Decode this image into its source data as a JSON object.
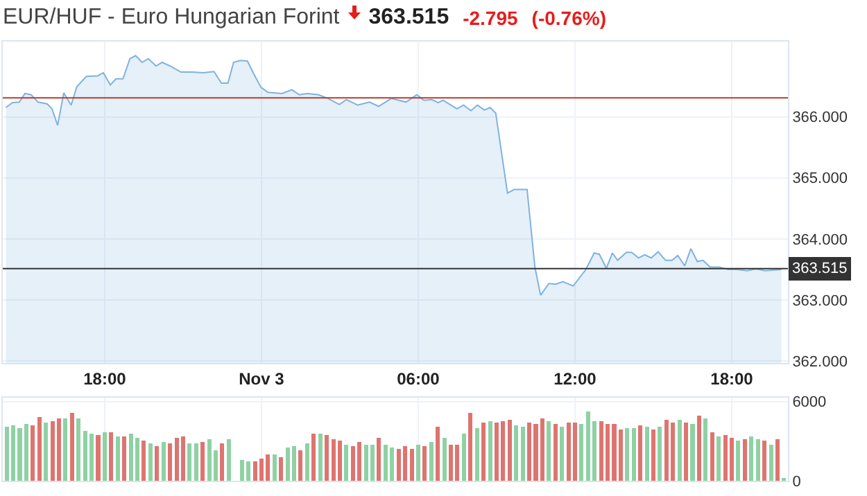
{
  "chart_data": [
    {
      "type": "area",
      "title": "EUR/HUF - Euro Hungarian Forint",
      "annotations": [
        "363.515",
        "-2.795",
        "(-0.76%)"
      ],
      "x": [
        "--11-02T14:13",
        "--11-02T14:28",
        "--11-02T14:44",
        "--11-02T14:57",
        "--11-02T15:11",
        "--11-02T15:27",
        "--11-02T15:48",
        "--11-02T15:59",
        "--11-02T16:12",
        "--11-02T16:26",
        "--11-02T16:43",
        "--11-02T16:56",
        "--11-02T17:18",
        "--11-02T17:44",
        "--11-02T17:57",
        "--11-02T18:13",
        "--11-02T18:26",
        "--11-02T18:42",
        "--11-02T18:58",
        "--11-02T19:11",
        "--11-02T19:26",
        "--11-02T19:40",
        "--11-02T19:58",
        "--11-02T20:12",
        "--11-02T20:33",
        "--11-02T20:55",
        "--11-02T21:21",
        "--11-02T21:47",
        "--11-02T22:11",
        "--11-02T22:28",
        "--11-02T22:43",
        "--11-02T22:56",
        "--11-02T23:12",
        "--11-02T23:28",
        "--11-02T23:41",
        "--11-02T23:59",
        "--11-03T00:15",
        "--11-03T00:47",
        "--11-03T01:10",
        "--11-03T01:27",
        "--11-03T01:45",
        "--11-03T02:11",
        "--11-03T02:33",
        "--11-03T02:59",
        "--11-03T03:15",
        "--11-03T03:41",
        "--11-03T04:08",
        "--11-03T04:29",
        "--11-03T04:58",
        "--11-03T05:32",
        "--11-03T05:57",
        "--11-03T06:13",
        "--11-03T06:31",
        "--11-03T06:46",
        "--11-03T06:57",
        "--11-03T07:29",
        "--11-03T07:44",
        "--11-03T08:01",
        "--11-03T08:16",
        "--11-03T08:32",
        "--11-03T08:45",
        "--11-03T08:58",
        "--11-03T09:25",
        "--11-03T09:41",
        "--11-03T10:10",
        "--11-03T10:28",
        "--11-03T10:41",
        "--11-03T11:00",
        "--11-03T11:16",
        "--11-03T11:32",
        "--11-03T11:56",
        "--11-03T12:25",
        "--11-03T12:44",
        "--11-03T12:56",
        "--11-03T13:12",
        "--11-03T13:26",
        "--11-03T13:38",
        "--11-03T13:58",
        "--11-03T14:10",
        "--11-03T14:26",
        "--11-03T14:40",
        "--11-03T14:55",
        "--11-03T15:11",
        "--11-03T15:28",
        "--11-03T15:43",
        "--11-03T15:56",
        "--11-03T16:12",
        "--11-03T16:26",
        "--11-03T16:41",
        "--11-03T16:54",
        "--11-03T17:10",
        "--11-03T17:31",
        "--11-03T17:52",
        "--11-03T18:13",
        "--11-03T18:35",
        "--11-03T18:56",
        "--11-03T19:17",
        "--11-03T19:54"
      ],
      "series": [
        {
          "color": "#7fb2e0",
          "values": [
            366.15,
            366.23,
            366.24,
            366.38,
            366.36,
            366.24,
            366.21,
            366.13,
            365.86,
            366.39,
            366.19,
            366.49,
            366.66,
            366.67,
            366.72,
            366.52,
            366.62,
            366.62,
            366.95,
            367.0,
            366.89,
            366.95,
            366.83,
            366.89,
            366.82,
            366.73,
            366.73,
            366.72,
            366.74,
            366.55,
            366.55,
            366.89,
            366.92,
            366.91,
            366.72,
            366.48,
            366.4,
            366.38,
            366.44,
            366.36,
            366.38,
            366.36,
            366.3,
            366.2,
            366.28,
            366.19,
            366.24,
            366.17,
            366.3,
            366.24,
            366.36,
            366.27,
            366.28,
            366.23,
            366.27,
            366.13,
            366.19,
            366.1,
            366.19,
            366.11,
            366.15,
            366.06,
            364.75,
            364.81,
            364.81,
            363.54,
            363.08,
            363.27,
            363.26,
            363.3,
            363.23,
            363.5,
            363.77,
            363.75,
            363.52,
            363.77,
            363.65,
            363.78,
            363.78,
            363.69,
            363.74,
            363.69,
            363.79,
            363.65,
            363.65,
            363.73,
            363.56,
            363.84,
            363.63,
            363.65,
            363.54,
            363.54,
            363.5,
            363.5,
            363.48,
            363.51,
            363.48,
            363.5
          ]
        }
      ],
      "xlim": [
        "--11-02T14:06",
        "--11-03T20:09"
      ],
      "ylim": [
        361.97,
        367.23
      ],
      "xticks": [
        {
          "value": "--11-02T18:00",
          "label": "18:00"
        },
        {
          "value": "--11-03",
          "label": "Nov 3"
        },
        {
          "value": "--11-03T06:00",
          "label": "06:00"
        },
        {
          "value": "--11-03T12:00",
          "label": "12:00"
        },
        {
          "value": "--11-03T18:00",
          "label": "18:00"
        }
      ],
      "yticks": [
        {
          "value": 362,
          "label": "362.000"
        },
        {
          "value": 363,
          "label": "363.000"
        },
        {
          "value": 364,
          "label": "364.000"
        },
        {
          "value": 365,
          "label": "365.000"
        },
        {
          "value": 366,
          "label": "366.000"
        }
      ],
      "grid": true,
      "ref_lines": [
        {
          "axis": "y",
          "value": 366.31,
          "color": "#c0392b"
        },
        {
          "axis": "y",
          "value": 363.515,
          "label": "363.515",
          "color": "#333333"
        }
      ]
    },
    {
      "type": "bar",
      "x": [
        "--11-02T14:15",
        "--11-02T14:30",
        "--11-02T14:45",
        "--11-02T15:00",
        "--11-02T15:15",
        "--11-02T15:30",
        "--11-02T15:45",
        "--11-02T16:00",
        "--11-02T16:15",
        "--11-02T16:30",
        "--11-02T16:45",
        "--11-02T17:00",
        "--11-02T17:15",
        "--11-02T17:30",
        "--11-02T17:45",
        "--11-02T18:00",
        "--11-02T18:15",
        "--11-02T18:30",
        "--11-02T18:45",
        "--11-02T19:00",
        "--11-02T19:15",
        "--11-02T19:30",
        "--11-02T19:45",
        "--11-02T20:00",
        "--11-02T20:15",
        "--11-02T20:30",
        "--11-02T20:45",
        "--11-02T21:00",
        "--11-02T21:15",
        "--11-02T21:30",
        "--11-02T21:45",
        "--11-02T22:00",
        "--11-02T22:15",
        "--11-02T22:30",
        "--11-02T22:45",
        "--11-02T23:00",
        "--11-02T23:15",
        "--11-02T23:30",
        "--11-02T23:45",
        "--11-03T00:00",
        "--11-03T00:15",
        "--11-03T00:30",
        "--11-03T00:45",
        "--11-03T01:00",
        "--11-03T01:15",
        "--11-03T01:30",
        "--11-03T01:45",
        "--11-03T02:00",
        "--11-03T02:15",
        "--11-03T02:30",
        "--11-03T02:45",
        "--11-03T03:00",
        "--11-03T03:15",
        "--11-03T03:30",
        "--11-03T03:45",
        "--11-03T04:00",
        "--11-03T04:15",
        "--11-03T04:30",
        "--11-03T04:45",
        "--11-03T05:00",
        "--11-03T05:15",
        "--11-03T05:30",
        "--11-03T05:45",
        "--11-03T06:00",
        "--11-03T06:15",
        "--11-03T06:30",
        "--11-03T06:45",
        "--11-03T07:00",
        "--11-03T07:15",
        "--11-03T07:30",
        "--11-03T07:45",
        "--11-03T08:00",
        "--11-03T08:15",
        "--11-03T08:30",
        "--11-03T08:45",
        "--11-03T09:00",
        "--11-03T09:15",
        "--11-03T09:30",
        "--11-03T09:45",
        "--11-03T10:00",
        "--11-03T10:15",
        "--11-03T10:30",
        "--11-03T10:45",
        "--11-03T11:00",
        "--11-03T11:15",
        "--11-03T11:30",
        "--11-03T11:45",
        "--11-03T12:00",
        "--11-03T12:15",
        "--11-03T12:30",
        "--11-03T12:45",
        "--11-03T13:00",
        "--11-03T13:15",
        "--11-03T13:30",
        "--11-03T13:45",
        "--11-03T14:00",
        "--11-03T14:15",
        "--11-03T14:30",
        "--11-03T14:45",
        "--11-03T15:00",
        "--11-03T15:15",
        "--11-03T15:30",
        "--11-03T15:45",
        "--11-03T16:00",
        "--11-03T16:15",
        "--11-03T16:30",
        "--11-03T16:45",
        "--11-03T17:00",
        "--11-03T17:15",
        "--11-03T17:30",
        "--11-03T17:45",
        "--11-03T18:00",
        "--11-03T18:15",
        "--11-03T18:30",
        "--11-03T18:45",
        "--11-03T19:00",
        "--11-03T19:15",
        "--11-03T19:30",
        "--11-03T19:45",
        "--11-03T20:00"
      ],
      "values": [
        4080,
        4190,
        3980,
        4330,
        4190,
        4850,
        4430,
        4540,
        4750,
        4750,
        5170,
        4750,
        3800,
        3590,
        3490,
        3700,
        3700,
        3380,
        3380,
        3590,
        3280,
        3070,
        2860,
        2650,
        2960,
        2860,
        3280,
        3380,
        2860,
        2860,
        2960,
        3170,
        2330,
        2860,
        3170,
        null,
        1600,
        1490,
        1490,
        1700,
        2020,
        2020,
        1810,
        2540,
        2650,
        2330,
        2860,
        3590,
        3590,
        3490,
        3170,
        3070,
        2750,
        2650,
        2960,
        2750,
        2750,
        3280,
        2750,
        2540,
        2440,
        2650,
        2440,
        2750,
        2650,
        2960,
        4110,
        3280,
        2750,
        2750,
        3590,
        5170,
        4010,
        4430,
        4540,
        4430,
        4540,
        4640,
        4220,
        4110,
        4430,
        4330,
        4750,
        4500,
        4330,
        4110,
        4430,
        4430,
        4330,
        5270,
        4540,
        4540,
        4330,
        4330,
        3910,
        4010,
        4010,
        4220,
        4110,
        3910,
        4110,
        4640,
        4430,
        4640,
        4430,
        4330,
        4950,
        4750,
        3700,
        3380,
        3490,
        3280,
        3070,
        3170,
        3380,
        3170,
        3070,
        2750,
        3170,
        230
      ],
      "colors": [
        "#8fd1a4",
        "#8fd1a4",
        "#8fd1a4",
        "#8fd1a4",
        "#de7470",
        "#de7470",
        "#8fd1a4",
        "#de7470",
        "#de7470",
        "#8fd1a4",
        "#de7470",
        "#8fd1a4",
        "#8fd1a4",
        "#8fd1a4",
        "#de7470",
        "#8fd1a4",
        "#de7470",
        "#8fd1a4",
        "#de7470",
        "#8fd1a4",
        "#8fd1a4",
        "#de7470",
        "#8fd1a4",
        "#de7470",
        "#8fd1a4",
        "#de7470",
        "#de7470",
        "#de7470",
        "#8fd1a4",
        "#8fd1a4",
        "#de7470",
        "#8fd1a4",
        "#8fd1a4",
        "#de7470",
        "#8fd1a4",
        "#8fd1a4",
        "#8fd1a4",
        "#8fd1a4",
        "#de7470",
        "#de7470",
        "#de7470",
        "#8fd1a4",
        "#de7470",
        "#8fd1a4",
        "#8fd1a4",
        "#de7470",
        "#8fd1a4",
        "#de7470",
        "#8fd1a4",
        "#de7470",
        "#de7470",
        "#de7470",
        "#8fd1a4",
        "#de7470",
        "#de7470",
        "#8fd1a4",
        "#8fd1a4",
        "#de7470",
        "#8fd1a4",
        "#8fd1a4",
        "#de7470",
        "#de7470",
        "#de7470",
        "#8fd1a4",
        "#de7470",
        "#8fd1a4",
        "#de7470",
        "#8fd1a4",
        "#de7470",
        "#de7470",
        "#8fd1a4",
        "#de7470",
        "#8fd1a4",
        "#de7470",
        "#8fd1a4",
        "#de7470",
        "#de7470",
        "#de7470",
        "#8fd1a4",
        "#8fd1a4",
        "#de7470",
        "#de7470",
        "#de7470",
        "#8fd1a4",
        "#de7470",
        "#8fd1a4",
        "#de7470",
        "#de7470",
        "#8fd1a4",
        "#8fd1a4",
        "#8fd1a4",
        "#de7470",
        "#de7470",
        "#de7470",
        "#de7470",
        "#8fd1a4",
        "#8fd1a4",
        "#de7470",
        "#8fd1a4",
        "#de7470",
        "#8fd1a4",
        "#de7470",
        "#de7470",
        "#8fd1a4",
        "#de7470",
        "#8fd1a4",
        "#de7470",
        "#8fd1a4",
        "#de7470",
        "#8fd1a4",
        "#de7470",
        "#de7470",
        "#8fd1a4",
        "#de7470",
        "#8fd1a4",
        "#8fd1a4",
        "#de7470",
        "#8fd1a4",
        "#de7470",
        "#8fd1a4"
      ],
      "xlim": [
        "--11-02T14:06",
        "--11-03T20:09"
      ],
      "ylim": [
        0,
        6300
      ],
      "xticks": [
        {
          "value": "--11-02T18:00",
          "label": null
        },
        {
          "value": "--11-03",
          "label": null
        },
        {
          "value": "--11-03T06:00",
          "label": null
        },
        {
          "value": "--11-03T12:00",
          "label": null
        },
        {
          "value": "--11-03T18:00",
          "label": null
        }
      ],
      "yticks": [
        0,
        6000
      ],
      "grid": true,
      "tick_labels": "y"
    }
  ]
}
